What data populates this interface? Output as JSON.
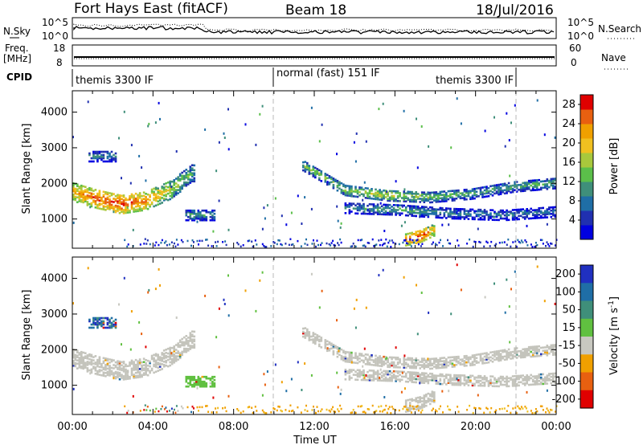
{
  "header": {
    "station": "Fort Hays East (fitACF)",
    "beam": "Beam 18",
    "date": "18/Jul/2016"
  },
  "top_panels": {
    "nsky_label": "N.Sky",
    "nsearch_label": "N.Search",
    "noise_ticks": [
      "10^5",
      "10^0"
    ],
    "freq_label": "Freq.",
    "freq_unit": "[MHz]",
    "freq_ticks": [
      "18",
      "8"
    ],
    "nave_label": "Nave",
    "nave_ticks": [
      "60",
      "0"
    ],
    "cpid_label": "CPID",
    "cpid_segments": [
      {
        "label": "themis 3300 IF",
        "start_hour": 0,
        "end_hour": 10
      },
      {
        "label": "normal (fast) 151 IF",
        "start_hour": 10,
        "end_hour": 22
      },
      {
        "label": "themis 3300 IF",
        "start_hour": 22,
        "end_hour": 24
      }
    ],
    "mode_change_hours": [
      10,
      22
    ]
  },
  "chart_data": [
    {
      "type": "heatmap",
      "panel": "power",
      "ylabel": "Slant Range [km]",
      "xlabel": "",
      "xlim_hours": [
        0,
        24
      ],
      "ylim": [
        180,
        4600
      ],
      "y_ticks": [
        1000,
        2000,
        3000,
        4000
      ],
      "colorbar": {
        "label": "Power [dB]",
        "ticks": [
          4,
          8,
          12,
          16,
          20,
          24,
          28
        ],
        "range": [
          0,
          30
        ],
        "colors": [
          "#0000e0",
          "#2030b0",
          "#1f6ea6",
          "#3f8f7a",
          "#5bbf4a",
          "#a8c83c",
          "#f0c020",
          "#f0a000",
          "#e86010",
          "#e00000"
        ]
      },
      "echo_regions": [
        {
          "description_series": "arc_2000km_morning",
          "x_start_hour": 0.0,
          "x_end_hour": 6.0,
          "range_km_center": [
            1750,
            1550,
            1400,
            1500,
            1800,
            2300
          ],
          "power_db": [
            22,
            26,
            27,
            24,
            18,
            12
          ]
        },
        {
          "description_series": "patch_2800km",
          "x_start_hour": 0.8,
          "x_end_hour": 2.2,
          "range_km_center": [
            2750
          ],
          "power_db": [
            10
          ]
        },
        {
          "description_series": "patch_1100km",
          "x_start_hour": 5.6,
          "x_end_hour": 7.0,
          "range_km_center": [
            1100
          ],
          "power_db": [
            12
          ]
        },
        {
          "description_series": "arc_noon_evening",
          "x_start_hour": 11.4,
          "x_end_hour": 24.0,
          "range_km_center": [
            2500,
            1800,
            1650,
            1600,
            1700,
            1900,
            2000
          ],
          "power_db": [
            14,
            16,
            18,
            14,
            12,
            12,
            13
          ]
        },
        {
          "description_series": "band_1200km_afternoon",
          "x_start_hour": 13.5,
          "x_end_hour": 24.0,
          "range_km_center": [
            1300,
            1250,
            1150,
            1100,
            1200
          ],
          "power_db": [
            10,
            12,
            10,
            9,
            10
          ]
        },
        {
          "description_series": "strong_near_range",
          "x_start_hour": 16.5,
          "x_end_hour": 18.0,
          "range_km_center": [
            400,
            500,
            700
          ],
          "power_db": [
            26,
            28,
            20
          ]
        }
      ]
    },
    {
      "type": "heatmap",
      "panel": "velocity",
      "ylabel": "Slant Range [km]",
      "xlabel": "Time UT",
      "x_tick_labels": [
        "00:00",
        "04:00",
        "08:00",
        "12:00",
        "16:00",
        "20:00",
        "00:00"
      ],
      "xlim_hours": [
        0,
        24
      ],
      "ylim": [
        180,
        4600
      ],
      "y_ticks": [
        1000,
        2000,
        3000,
        4000
      ],
      "colorbar": {
        "label": "Velocity [m s^-1]",
        "ticks": [
          200,
          100,
          50,
          15,
          -15,
          -50,
          -100,
          -200
        ],
        "colors": [
          "#2030c0",
          "#1f6ea6",
          "#3f8f7a",
          "#60c040",
          "#c8c8c0",
          "#f0a000",
          "#e86010",
          "#e00000"
        ]
      },
      "ground_scatter_regions": [
        "arc_2000km_morning",
        "arc_noon_evening",
        "band_1200km_afternoon"
      ],
      "notes_velocity": {
        "near_range_orange_hours": [
          6,
          24
        ],
        "green_patch_hour": 7.0
      }
    }
  ],
  "colors": {
    "axis": "#000000",
    "dashed_mode_line": "#b8b8b8",
    "ground_scatter": "#c4c4bc"
  }
}
